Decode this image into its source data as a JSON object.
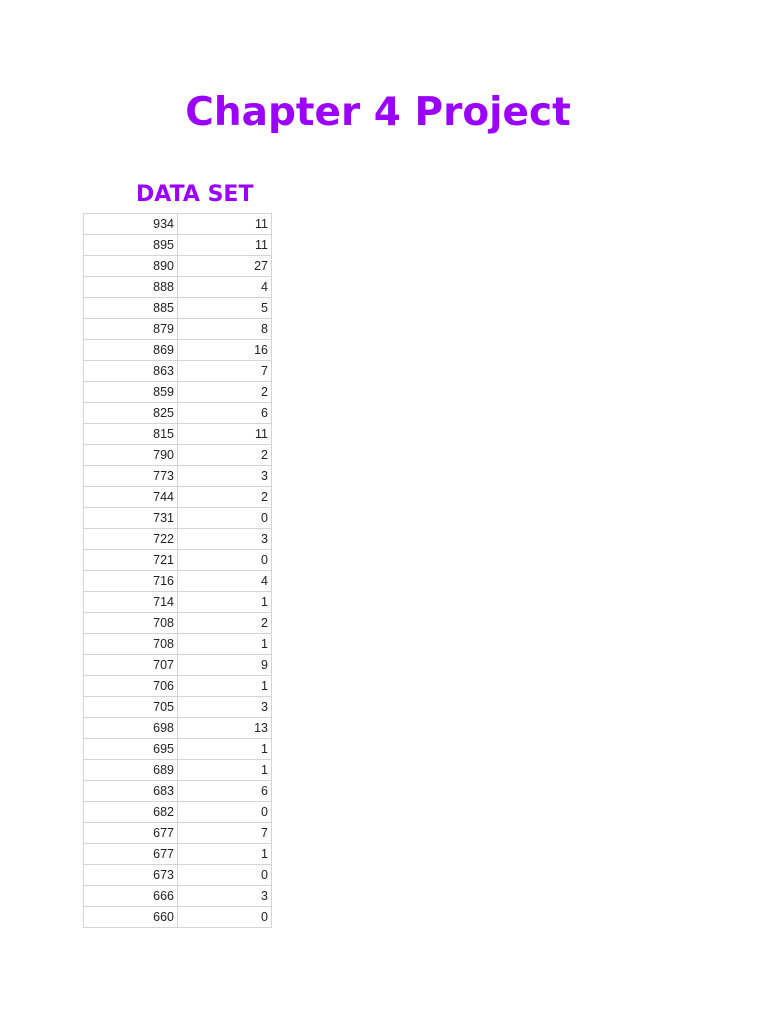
{
  "title": "Chapter 4 Project",
  "subtitle": "DATA SET",
  "colors": {
    "heading": "#9b00ff"
  },
  "rows": [
    [
      "934",
      "11"
    ],
    [
      "895",
      "11"
    ],
    [
      "890",
      "27"
    ],
    [
      "888",
      "4"
    ],
    [
      "885",
      "5"
    ],
    [
      "879",
      "8"
    ],
    [
      "869",
      "16"
    ],
    [
      "863",
      "7"
    ],
    [
      "859",
      "2"
    ],
    [
      "825",
      "6"
    ],
    [
      "815",
      "11"
    ],
    [
      "790",
      "2"
    ],
    [
      "773",
      "3"
    ],
    [
      "744",
      "2"
    ],
    [
      "731",
      "0"
    ],
    [
      "722",
      "3"
    ],
    [
      "721",
      "0"
    ],
    [
      "716",
      "4"
    ],
    [
      "714",
      "1"
    ],
    [
      "708",
      "2"
    ],
    [
      "708",
      "1"
    ],
    [
      "707",
      "9"
    ],
    [
      "706",
      "1"
    ],
    [
      "705",
      "3"
    ],
    [
      "698",
      "13"
    ],
    [
      "695",
      "1"
    ],
    [
      "689",
      "1"
    ],
    [
      "683",
      "6"
    ],
    [
      "682",
      "0"
    ],
    [
      "677",
      "7"
    ],
    [
      "677",
      "1"
    ],
    [
      "673",
      "0"
    ],
    [
      "666",
      "3"
    ],
    [
      "660",
      "0"
    ]
  ]
}
